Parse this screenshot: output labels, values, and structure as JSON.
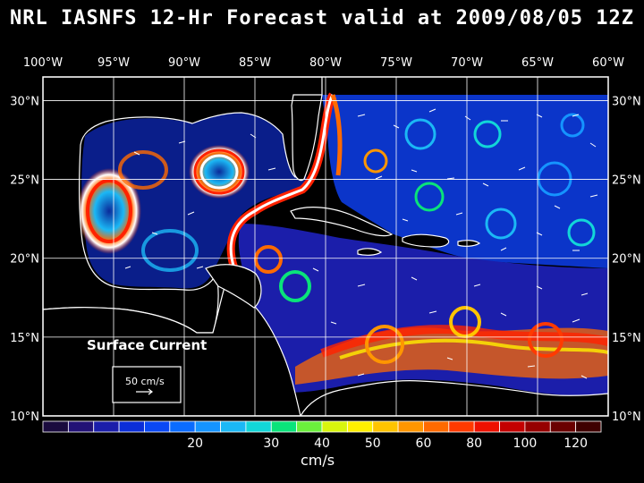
{
  "title": "NRL IASNFS  12-Hr Forecast valid at 2009/08/05 12Z",
  "map": {
    "lon_labels": [
      "100°W",
      "95°W",
      "90°W",
      "85°W",
      "80°W",
      "75°W",
      "70°W",
      "65°W",
      "60°W"
    ],
    "lon_values": [
      -100,
      -95,
      -90,
      -85,
      -80,
      -75,
      -70,
      -65,
      -60
    ],
    "lat_labels": [
      "30°N",
      "25°N",
      "20°N",
      "15°N",
      "10°N"
    ],
    "lat_values": [
      30,
      25,
      20,
      15,
      10
    ],
    "lon_range": [
      -100,
      -60
    ],
    "lat_range": [
      10,
      31.5
    ],
    "grid": true,
    "overlay_title": "Surface Current",
    "reference_vector_label": "50 cm/s"
  },
  "colorbar": {
    "tick_labels": [
      "20",
      "30",
      "40",
      "50",
      "60",
      "80",
      "100",
      "120"
    ],
    "units": "cm/s",
    "colors": [
      "#1a0b3e",
      "#221276",
      "#1b1eaa",
      "#0b2ed8",
      "#0a48f4",
      "#0a6cff",
      "#1594ff",
      "#1bb8f5",
      "#12d6d8",
      "#0ae37a",
      "#6bf03c",
      "#d8f50d",
      "#fff000",
      "#ffc400",
      "#ff9600",
      "#ff6a00",
      "#ff3a00",
      "#ee1100",
      "#c40000",
      "#960000",
      "#6a0000",
      "#3e0000"
    ]
  }
}
